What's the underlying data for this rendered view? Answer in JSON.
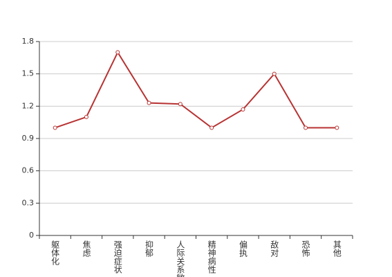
{
  "chart_data": {
    "type": "line",
    "categories": [
      "躯体化",
      "焦虑",
      "强迫症状",
      "抑郁",
      "人际关系敏感",
      "精神病性",
      "偏执",
      "敌对",
      "恐怖",
      "其他"
    ],
    "values": [
      1.0,
      1.1,
      1.7,
      1.23,
      1.22,
      1.0,
      1.17,
      1.5,
      1.0,
      1.0
    ],
    "color": "#b83232",
    "ylim": [
      0,
      1.8
    ],
    "yticks": [
      0,
      0.3,
      0.6,
      0.9,
      1.2,
      1.5,
      1.8
    ],
    "grid": true
  }
}
